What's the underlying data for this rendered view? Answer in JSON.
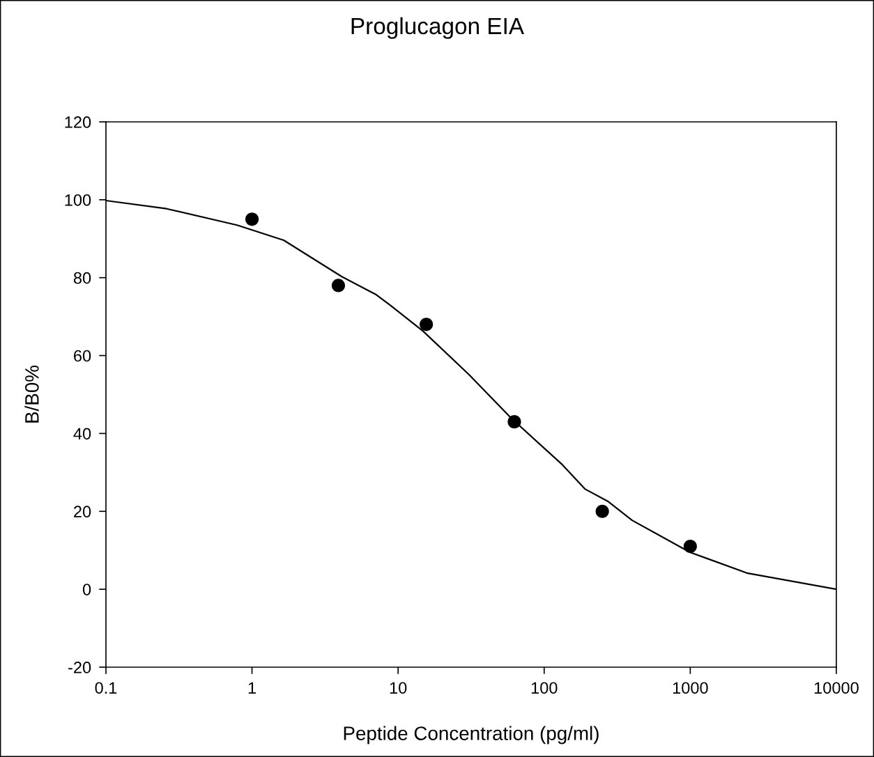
{
  "chart_data": {
    "type": "scatter",
    "title": "Proglucagon EIA",
    "xlabel": "Peptide Concentration (pg/ml)",
    "ylabel": "B/B0%",
    "log": "x",
    "xlim": [
      0.1,
      10000
    ],
    "xticks": [
      0.1,
      1,
      10,
      100,
      1000,
      10000
    ],
    "ylim": [
      -20,
      120
    ],
    "yticks": [
      -20,
      0,
      20,
      40,
      60,
      80,
      100,
      120
    ],
    "grid": false,
    "legend": false,
    "series": [
      {
        "color": "#000000",
        "marker": "circle",
        "x": [
          1,
          3.9,
          15.6,
          62.5,
          250,
          1000
        ],
        "values": [
          95,
          78,
          68,
          43,
          20,
          11
        ]
      },
      {
        "type": "line",
        "color": "#000000",
        "marker": "none",
        "line_style": "solid",
        "x": [
          0.1,
          0.26,
          0.79,
          1.65,
          4.1,
          7.1,
          8.85,
          14.8,
          30.6,
          59.2,
          133,
          191,
          275,
          400,
          995,
          2477,
          10000
        ],
        "values": [
          99.8,
          97.7,
          93.5,
          89.6,
          80.3,
          75.6,
          72.9,
          66.3,
          55.1,
          44.0,
          32.0,
          25.7,
          22.5,
          17.7,
          9.5,
          4.1,
          0
        ]
      }
    ]
  }
}
